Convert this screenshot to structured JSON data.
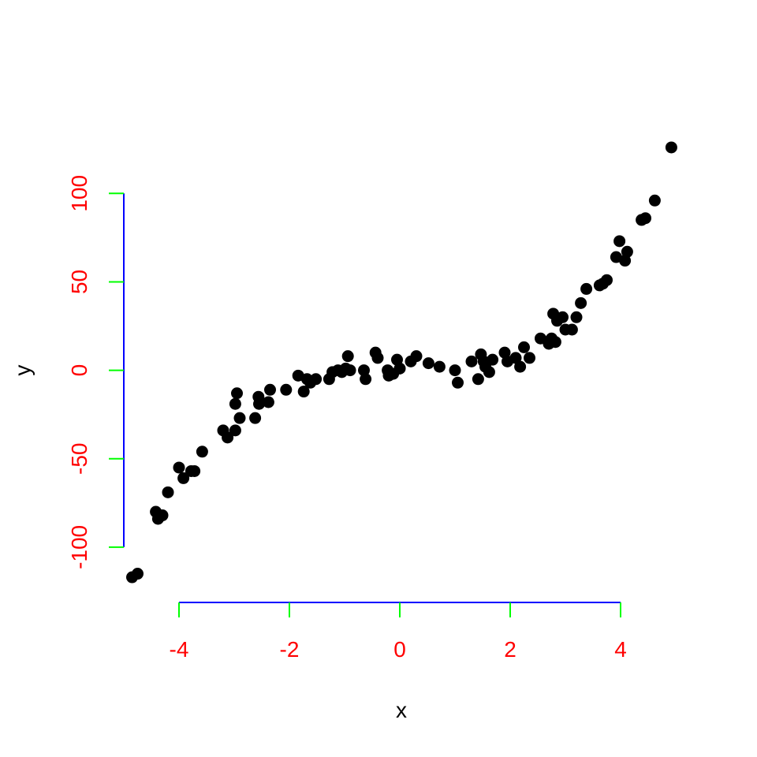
{
  "chart_data": {
    "type": "scatter",
    "xlabel": "x",
    "ylabel": "y",
    "xlim": [
      -5.0,
      5.0
    ],
    "ylim": [
      -121,
      130
    ],
    "xticks": [
      -4,
      -2,
      0,
      2,
      4
    ],
    "xtick_labels": [
      "-4",
      "-2",
      "0",
      "2",
      "4"
    ],
    "yticks": [
      -100,
      -50,
      0,
      50,
      100
    ],
    "ytick_labels": [
      "-100",
      "-50",
      "0",
      "50",
      "100"
    ],
    "grid": false,
    "colors": {
      "axis_line": "#0000ff",
      "tick_mark": "#00ff00",
      "tick_label": "#ff0000",
      "point": "#000000"
    },
    "points": [
      [
        -4.85,
        -117
      ],
      [
        -4.75,
        -115
      ],
      [
        -4.42,
        -80
      ],
      [
        -4.38,
        -84
      ],
      [
        -4.3,
        -82
      ],
      [
        -4.2,
        -69
      ],
      [
        -4.0,
        -55
      ],
      [
        -3.92,
        -61
      ],
      [
        -3.78,
        -57
      ],
      [
        -3.72,
        -57
      ],
      [
        -3.58,
        -46
      ],
      [
        -3.2,
        -34
      ],
      [
        -3.12,
        -38
      ],
      [
        -2.98,
        -34
      ],
      [
        -2.98,
        -19
      ],
      [
        -2.95,
        -13
      ],
      [
        -2.9,
        -27
      ],
      [
        -2.62,
        -27
      ],
      [
        -2.56,
        -15
      ],
      [
        -2.55,
        -19
      ],
      [
        -2.38,
        -18
      ],
      [
        -2.35,
        -11
      ],
      [
        -2.06,
        -11
      ],
      [
        -1.84,
        -3
      ],
      [
        -1.74,
        -12
      ],
      [
        -1.68,
        -5
      ],
      [
        -1.62,
        -7
      ],
      [
        -1.52,
        -5
      ],
      [
        -1.28,
        -5
      ],
      [
        -1.22,
        -1
      ],
      [
        -1.12,
        0
      ],
      [
        -1.05,
        -1
      ],
      [
        -0.98,
        1
      ],
      [
        -0.94,
        8
      ],
      [
        -0.9,
        0
      ],
      [
        -0.65,
        0
      ],
      [
        -0.62,
        -5
      ],
      [
        -0.44,
        10
      ],
      [
        -0.4,
        7
      ],
      [
        -0.22,
        0
      ],
      [
        -0.2,
        -3
      ],
      [
        -0.12,
        -2
      ],
      [
        -0.05,
        6
      ],
      [
        0.0,
        1
      ],
      [
        0.2,
        5
      ],
      [
        0.3,
        8
      ],
      [
        0.52,
        4
      ],
      [
        0.72,
        2
      ],
      [
        1.0,
        0
      ],
      [
        1.05,
        -7
      ],
      [
        1.3,
        5
      ],
      [
        1.42,
        -5
      ],
      [
        1.47,
        9
      ],
      [
        1.52,
        5
      ],
      [
        1.55,
        2
      ],
      [
        1.62,
        -1
      ],
      [
        1.68,
        6
      ],
      [
        1.9,
        10
      ],
      [
        1.95,
        5
      ],
      [
        2.1,
        7
      ],
      [
        2.18,
        2
      ],
      [
        2.25,
        13
      ],
      [
        2.35,
        7
      ],
      [
        2.55,
        18
      ],
      [
        2.7,
        15
      ],
      [
        2.75,
        18
      ],
      [
        2.78,
        32
      ],
      [
        2.82,
        16
      ],
      [
        2.85,
        28
      ],
      [
        2.95,
        30
      ],
      [
        3.0,
        23
      ],
      [
        3.12,
        23
      ],
      [
        3.2,
        30
      ],
      [
        3.28,
        38
      ],
      [
        3.38,
        46
      ],
      [
        3.62,
        48
      ],
      [
        3.68,
        49
      ],
      [
        3.75,
        51
      ],
      [
        3.92,
        64
      ],
      [
        3.98,
        73
      ],
      [
        4.08,
        62
      ],
      [
        4.12,
        67
      ],
      [
        4.38,
        85
      ],
      [
        4.45,
        86
      ],
      [
        4.62,
        96
      ],
      [
        4.92,
        126
      ]
    ]
  }
}
